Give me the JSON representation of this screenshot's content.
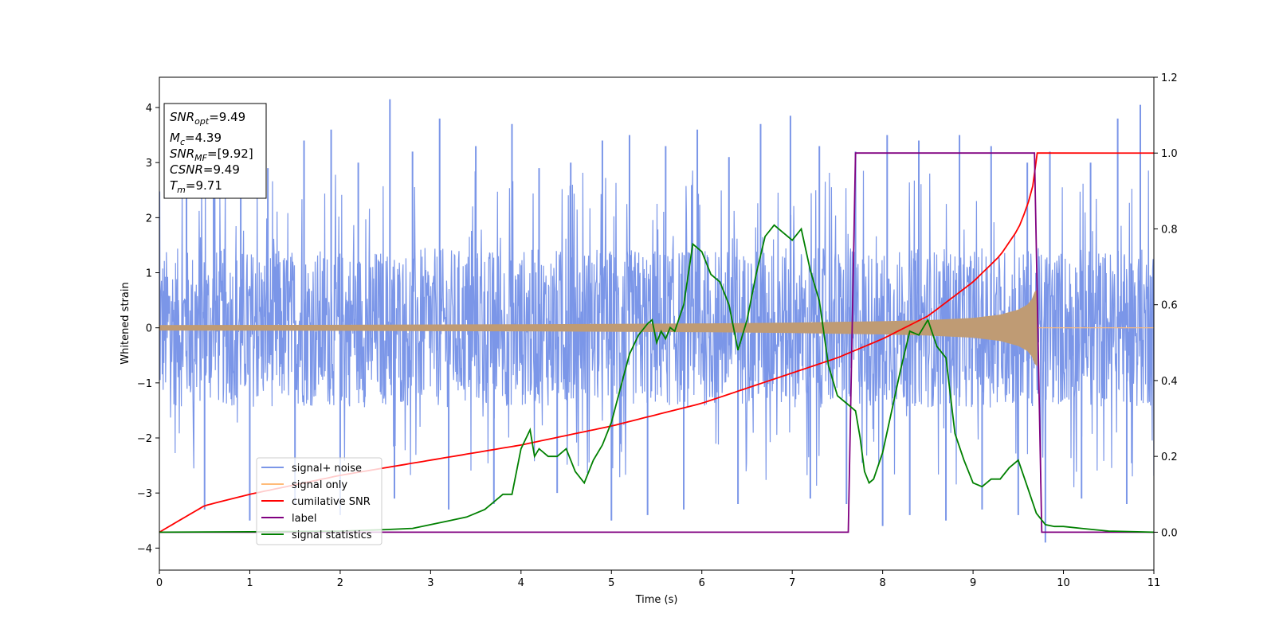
{
  "chart_data": {
    "type": "line",
    "xlabel": "Time (s)",
    "ylabel": "Whitened strain",
    "xlim": [
      0,
      11
    ],
    "ylim_left": [
      -4.4,
      4.55
    ],
    "ylim_right": [
      -0.1,
      1.2
    ],
    "x_ticks": [
      "0",
      "1",
      "2",
      "3",
      "4",
      "5",
      "6",
      "7",
      "8",
      "9",
      "10",
      "11"
    ],
    "y_left_ticks": [
      "4",
      "3",
      "2",
      "1",
      "0",
      "−1",
      "−2",
      "−3",
      "−4"
    ],
    "y_right_ticks": [
      "1.2",
      "1.0",
      "0.8",
      "0.6",
      "0.4",
      "0.2",
      "0.0"
    ],
    "annotation": {
      "snr_opt": "=9.49",
      "mc": "=4.39",
      "snr_mf": "=[9.92]",
      "csnr": "=9.49",
      "tm": "=9.71"
    },
    "legend": {
      "placement": "lower-left",
      "entries": [
        "signal+ noise",
        "signal only",
        "cumilative SNR",
        "label",
        "signal statistics"
      ]
    },
    "colors": {
      "signal_noise": "#7b96e8",
      "signal_only": "#ffbb78",
      "envelope": "#bf9b74",
      "cumulative_snr": "#ff0000",
      "label": "#800080",
      "signal_statistics": "#008000"
    },
    "series": [
      {
        "name": "cumilative SNR",
        "axis": "right",
        "x": [
          0,
          0.5,
          1,
          2,
          3,
          4,
          5,
          6,
          7,
          7.5,
          8,
          8.5,
          9,
          9.3,
          9.5,
          9.6,
          9.68,
          9.71,
          11
        ],
        "values": [
          0.0,
          0.07,
          0.1,
          0.15,
          0.19,
          0.23,
          0.28,
          0.34,
          0.42,
          0.46,
          0.51,
          0.57,
          0.66,
          0.73,
          0.8,
          0.86,
          0.93,
          1.0,
          1.0
        ]
      },
      {
        "name": "label",
        "axis": "right",
        "x": [
          0,
          7.62,
          7.7,
          9.68,
          9.76,
          11
        ],
        "values": [
          0,
          0,
          1,
          1,
          0,
          0
        ]
      },
      {
        "name": "signal statistics",
        "axis": "right",
        "x": [
          0,
          1,
          2,
          2.5,
          2.8,
          3,
          3.2,
          3.4,
          3.6,
          3.7,
          3.8,
          3.9,
          4.0,
          4.1,
          4.15,
          4.2,
          4.3,
          4.4,
          4.5,
          4.6,
          4.7,
          4.8,
          4.9,
          5.0,
          5.1,
          5.2,
          5.3,
          5.4,
          5.45,
          5.5,
          5.55,
          5.6,
          5.65,
          5.7,
          5.8,
          5.9,
          6.0,
          6.1,
          6.2,
          6.3,
          6.4,
          6.5,
          6.6,
          6.7,
          6.8,
          6.9,
          7.0,
          7.1,
          7.2,
          7.3,
          7.4,
          7.5,
          7.6,
          7.7,
          7.75,
          7.8,
          7.85,
          7.9,
          8.0,
          8.1,
          8.2,
          8.3,
          8.4,
          8.5,
          8.6,
          8.7,
          8.8,
          8.9,
          9.0,
          9.1,
          9.2,
          9.3,
          9.4,
          9.5,
          9.6,
          9.7,
          9.8,
          9.9,
          10.0,
          10.2,
          10.5,
          11
        ],
        "values": [
          0.0,
          0.001,
          0.003,
          0.007,
          0.01,
          0.02,
          0.03,
          0.04,
          0.06,
          0.08,
          0.1,
          0.1,
          0.22,
          0.27,
          0.2,
          0.22,
          0.2,
          0.2,
          0.22,
          0.16,
          0.13,
          0.19,
          0.23,
          0.29,
          0.38,
          0.47,
          0.52,
          0.55,
          0.56,
          0.5,
          0.53,
          0.51,
          0.54,
          0.53,
          0.6,
          0.76,
          0.74,
          0.68,
          0.66,
          0.6,
          0.48,
          0.56,
          0.68,
          0.78,
          0.81,
          0.79,
          0.77,
          0.8,
          0.69,
          0.61,
          0.44,
          0.36,
          0.34,
          0.32,
          0.25,
          0.16,
          0.13,
          0.14,
          0.21,
          0.32,
          0.43,
          0.53,
          0.52,
          0.56,
          0.49,
          0.46,
          0.26,
          0.19,
          0.13,
          0.12,
          0.14,
          0.14,
          0.17,
          0.19,
          0.12,
          0.05,
          0.02,
          0.015,
          0.015,
          0.01,
          0.003,
          0.0
        ]
      },
      {
        "name": "signal only",
        "axis": "left",
        "envelope_x": [
          0,
          2,
          4,
          6,
          7,
          8,
          8.5,
          9,
          9.3,
          9.5,
          9.6,
          9.65,
          9.68,
          9.71
        ],
        "envelope_values": [
          0.05,
          0.055,
          0.065,
          0.08,
          0.095,
          0.12,
          0.14,
          0.18,
          0.24,
          0.33,
          0.42,
          0.52,
          0.65,
          0.7
        ]
      },
      {
        "name": "signal+ noise",
        "axis": "left",
        "band": [
          -1.3,
          1.3
        ],
        "spikes_x": [
          0.3,
          0.6,
          0.9,
          1.2,
          1.6,
          1.9,
          2.2,
          2.55,
          2.8,
          3.1,
          3.5,
          3.9,
          4.2,
          4.55,
          4.9,
          5.2,
          5.6,
          5.95,
          6.3,
          6.65,
          6.98,
          7.3,
          7.7,
          8.05,
          8.4,
          8.85,
          9.2,
          9.6,
          9.85,
          10.3,
          10.6,
          10.85
        ],
        "spikes_values": [
          3.5,
          3.0,
          3.3,
          2.9,
          3.4,
          3.6,
          3.0,
          4.15,
          3.2,
          3.8,
          3.3,
          3.7,
          2.9,
          3.0,
          3.4,
          3.5,
          3.3,
          3.6,
          3.1,
          3.7,
          3.85,
          3.3,
          3.2,
          3.5,
          3.4,
          3.5,
          3.3,
          3.0,
          3.2,
          3.0,
          3.8,
          4.05
        ],
        "spikes_low_x": [
          0.5,
          1.0,
          1.5,
          2.0,
          2.6,
          3.2,
          3.7,
          4.4,
          5.0,
          5.4,
          5.8,
          6.4,
          7.2,
          7.6,
          8.0,
          8.3,
          8.7,
          9.1,
          9.5,
          9.8,
          10.2,
          10.7
        ],
        "spikes_low_values": [
          -3.3,
          -3.5,
          -3.2,
          -3.4,
          -3.1,
          -3.3,
          -3.2,
          -3.0,
          -3.5,
          -3.4,
          -3.3,
          -3.2,
          -3.1,
          -3.2,
          -3.6,
          -3.4,
          -3.5,
          -3.3,
          -3.4,
          -3.9,
          -3.1,
          -3.2
        ]
      }
    ]
  }
}
